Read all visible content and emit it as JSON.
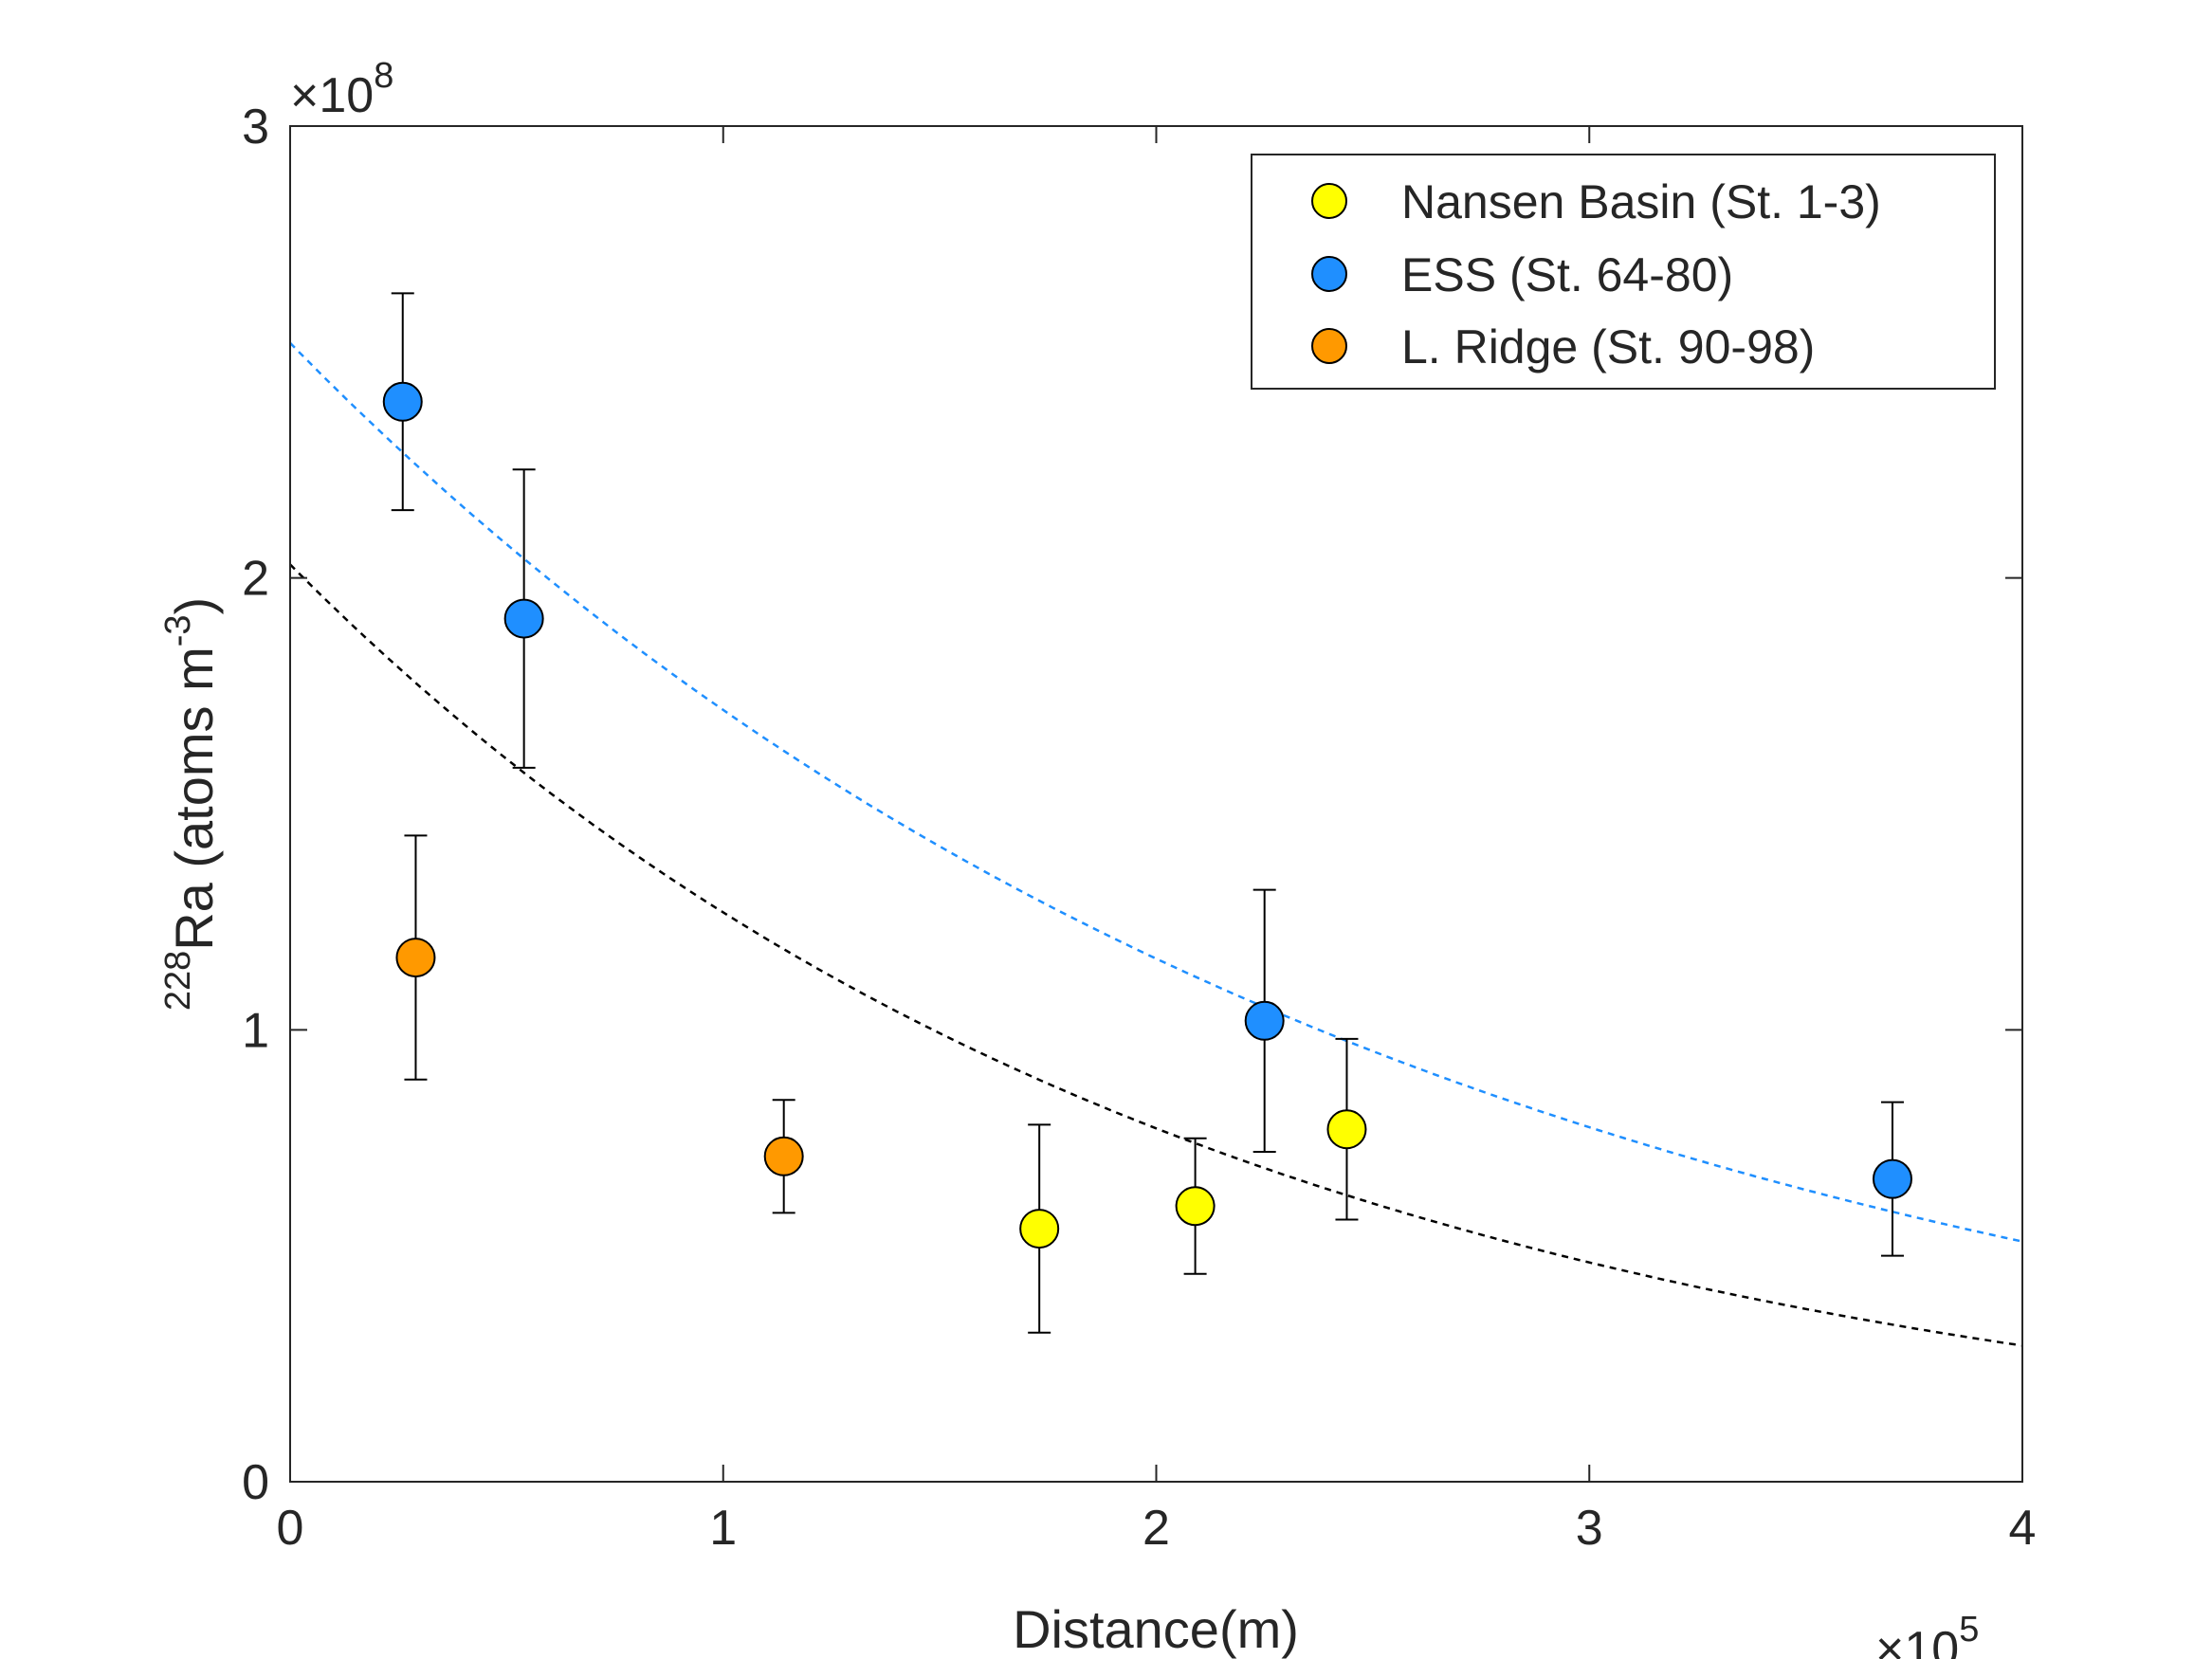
{
  "chart_data": {
    "type": "scatter",
    "xlabel": "Distance(m)",
    "ylabel": {
      "superscript": "228",
      "main": "Ra (atoms m",
      "exponent": "-3",
      "close": ")"
    },
    "x_multiplier": {
      "prefix": "×10",
      "exponent": "5"
    },
    "y_multiplier": {
      "prefix": "×10",
      "exponent": "8"
    },
    "xlim": [
      0,
      400000
    ],
    "ylim": [
      0,
      300000000
    ],
    "x_ticks": [
      0,
      100000,
      200000,
      300000,
      400000
    ],
    "x_tick_labels": [
      "0",
      "1",
      "2",
      "3",
      "4"
    ],
    "y_ticks": [
      0,
      100000000,
      200000000,
      300000000
    ],
    "y_tick_labels": [
      "0",
      "1",
      "2",
      "3"
    ],
    "grid": false,
    "legend_position": "top-right",
    "series": [
      {
        "name": "Nansen Basin (St. 1-3)",
        "color": "#ffff00",
        "points": [
          {
            "x": 173000,
            "y": 56000000,
            "err": 23000000
          },
          {
            "x": 209000,
            "y": 61000000,
            "err": 15000000
          },
          {
            "x": 244000,
            "y": 78000000,
            "err": 20000000
          }
        ]
      },
      {
        "name": "ESS (St. 64-80)",
        "color": "#1f8fff",
        "points": [
          {
            "x": 26000,
            "y": 239000000,
            "err": 24000000
          },
          {
            "x": 54000,
            "y": 191000000,
            "err": 33000000
          },
          {
            "x": 225000,
            "y": 102000000,
            "err": 29000000
          },
          {
            "x": 370000,
            "y": 67000000,
            "err": 17000000
          }
        ]
      },
      {
        "name": "L. Ridge (St. 90-98)",
        "color": "#ff9900",
        "points": [
          {
            "x": 29000,
            "y": 116000000,
            "err": 27000000
          },
          {
            "x": 114000,
            "y": 72000000,
            "err": 12500000
          }
        ]
      }
    ],
    "fits": [
      {
        "color": "#1f8fff",
        "style": "dashed",
        "a": 252000000,
        "b": 3.89e-06
      },
      {
        "color": "#000000",
        "style": "dashed",
        "a": 203000000,
        "b": 4.77e-06
      }
    ]
  }
}
